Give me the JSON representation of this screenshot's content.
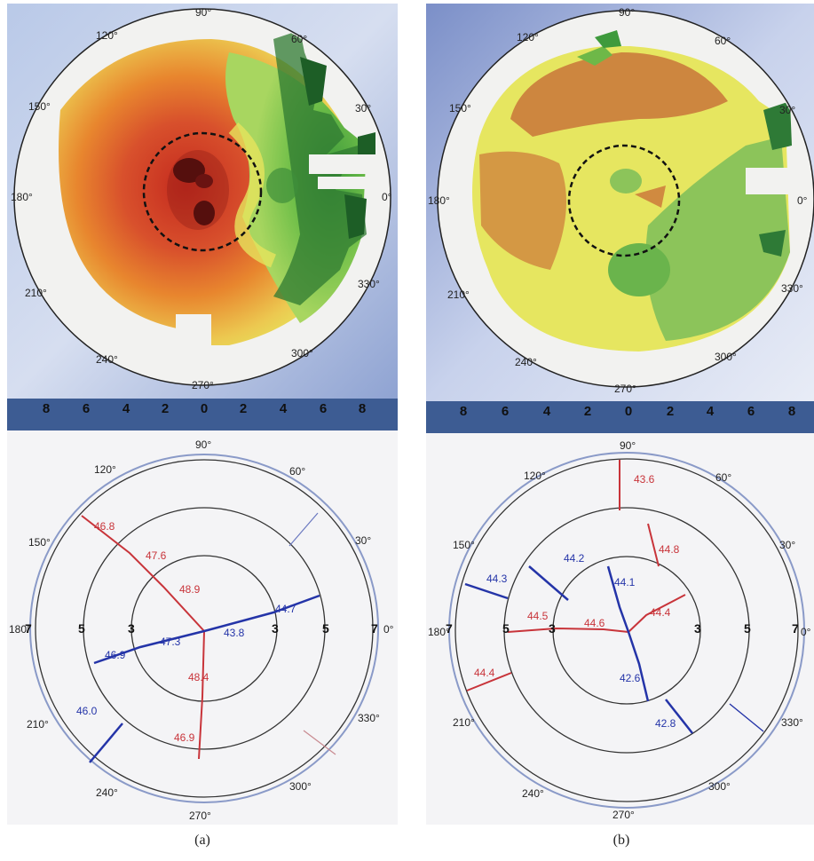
{
  "panels": [
    {
      "id": "a",
      "caption": "(a)",
      "topo": {
        "angle_labels": [
          "90°",
          "60°",
          "30°",
          "0°",
          "330°",
          "300°",
          "270°",
          "240°",
          "210°",
          "180°",
          "150°",
          "120°"
        ],
        "scale_ticks": [
          "8",
          "6",
          "4",
          "2",
          "0",
          "2",
          "4",
          "6",
          "8"
        ],
        "colors": {
          "peak": "#3a0a0a",
          "high": "#d8402a",
          "mid": "#e8842e",
          "low": "#e8e85a",
          "flat": "#5aae40",
          "edge": "#1e6a2a"
        }
      },
      "axial": {
        "angle_labels": [
          "90°",
          "60°",
          "30°",
          "0°",
          "330°",
          "300°",
          "270°",
          "240°",
          "210°",
          "180°",
          "150°",
          "120°"
        ],
        "ring_labels": {
          "l7": "7",
          "l5": "5",
          "l3": "3",
          "r3": "3",
          "r5": "5",
          "r7": "7"
        },
        "red_values": [
          "46.8",
          "47.6",
          "48.9",
          "48.4",
          "46.9"
        ],
        "blue_values": [
          "47.3",
          "43.8",
          "44.7",
          "46.9",
          "46.0"
        ]
      }
    },
    {
      "id": "b",
      "caption": "(b)",
      "topo": {
        "angle_labels": [
          "90°",
          "60°",
          "30°",
          "0°",
          "330°",
          "300°",
          "270°",
          "240°",
          "210°",
          "180°",
          "150°",
          "120°"
        ],
        "scale_ticks": [
          "8",
          "6",
          "4",
          "2",
          "0",
          "2",
          "4",
          "6",
          "8"
        ],
        "colors": {
          "high": "#c8743a",
          "mid": "#d8a04a",
          "low": "#e6e660",
          "flat": "#8cc45a",
          "edge": "#2e7a36"
        }
      },
      "axial": {
        "angle_labels": [
          "90°",
          "60°",
          "30°",
          "0°",
          "330°",
          "300°",
          "270°",
          "240°",
          "210°",
          "180°",
          "150°",
          "120°"
        ],
        "ring_labels": {
          "l7": "7",
          "l5": "5",
          "l3": "3",
          "r3": "3",
          "r5": "5",
          "r7": "7"
        },
        "red_values": [
          "43.6",
          "44.8",
          "44.5",
          "44.6",
          "44.4",
          "44.4"
        ],
        "blue_values": [
          "44.3",
          "44.2",
          "44.1",
          "42.6",
          "42.8"
        ]
      }
    }
  ]
}
